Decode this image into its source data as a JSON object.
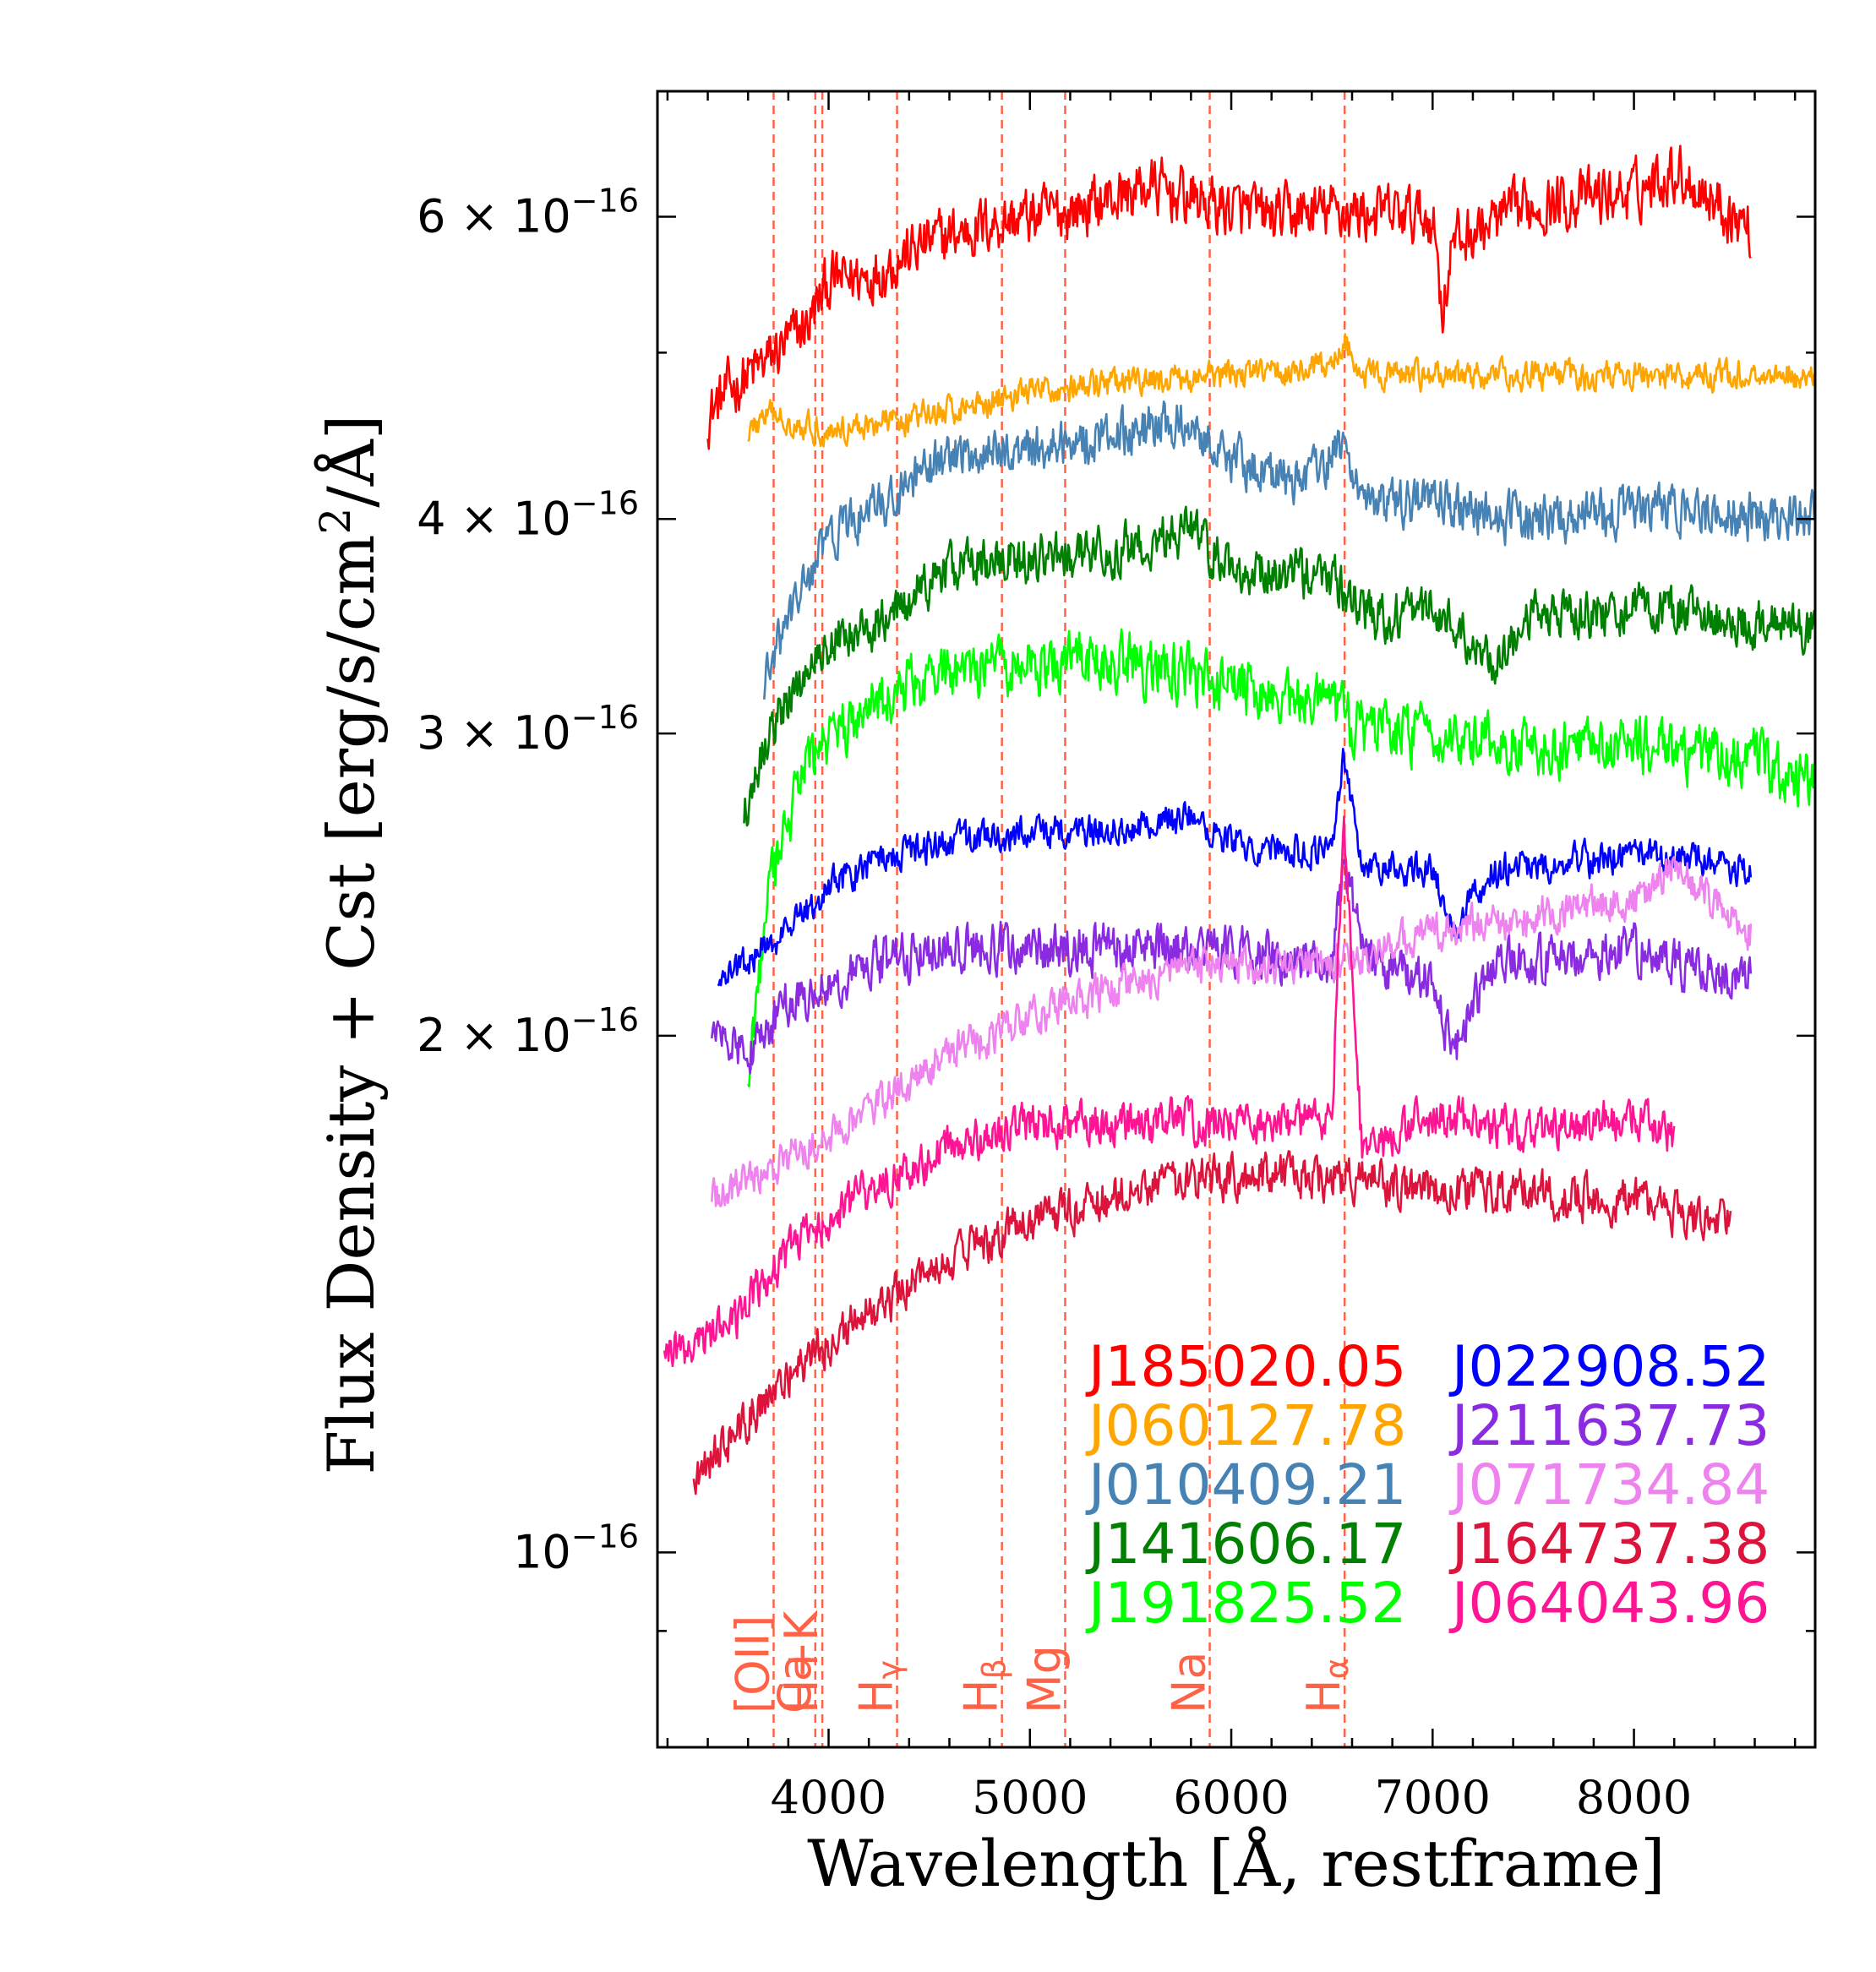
{
  "chart_data": {
    "type": "line",
    "title": "",
    "xlabel": "Wavelength [Å, restframe]",
    "ylabel_prefix": "Flux Density + Cst [erg/s/cm",
    "ylabel_sup": "2",
    "ylabel_suffix": "/Å]",
    "xscale": "linear",
    "yscale": "log",
    "xlim": [
      3150,
      8900
    ],
    "ylim": [
      7.7e-17,
      7.1e-16
    ],
    "xticks": [
      {
        "value": 4000,
        "label": "4000"
      },
      {
        "value": 5000,
        "label": "5000"
      },
      {
        "value": 6000,
        "label": "6000"
      },
      {
        "value": 7000,
        "label": "7000"
      },
      {
        "value": 8000,
        "label": "8000"
      }
    ],
    "yticks": [
      {
        "value": 1e-16,
        "base": "10",
        "exp": "−16"
      },
      {
        "value": 2e-16,
        "base": "2 × 10",
        "exp": "−16"
      },
      {
        "value": 3e-16,
        "base": "3 × 10",
        "exp": "−16"
      },
      {
        "value": 4e-16,
        "base": "4 × 10",
        "exp": "−16"
      },
      {
        "value": 6e-16,
        "base": "6 × 10",
        "exp": "−16"
      }
    ],
    "yminor_ticks": [
      9e-17,
      5e-16
    ],
    "reference_lines": [
      {
        "x": 3727,
        "label": "[OII]",
        "sub": ""
      },
      {
        "x": 3934,
        "label": "Ca",
        "sub": ""
      },
      {
        "x": 3969,
        "label": "H+K",
        "sub": ""
      },
      {
        "x": 4340,
        "label": "H",
        "sub": "γ"
      },
      {
        "x": 4861,
        "label": "H",
        "sub": "β"
      },
      {
        "x": 5175,
        "label": "Mg",
        "sub": ""
      },
      {
        "x": 5893,
        "label": "Na",
        "sub": ""
      },
      {
        "x": 6563,
        "label": "H",
        "sub": "α"
      }
    ],
    "reference_color": "#ff6347",
    "series": [
      {
        "name": "J185020.05",
        "color": "#ff0000",
        "x_start": 3400,
        "x_end": 8580,
        "anchors": [
          [
            3400,
            4.6
          ],
          [
            3500,
            4.75
          ],
          [
            3700,
            4.95
          ],
          [
            3900,
            5.2
          ],
          [
            4000,
            5.5
          ],
          [
            4200,
            5.55
          ],
          [
            4500,
            5.8
          ],
          [
            4800,
            5.95
          ],
          [
            5200,
            6.05
          ],
          [
            5600,
            6.25
          ],
          [
            5900,
            6.1
          ],
          [
            6200,
            6.0
          ],
          [
            6500,
            6.05
          ],
          [
            7000,
            6.0
          ],
          [
            7050,
            5.3
          ],
          [
            7100,
            5.8
          ],
          [
            7500,
            6.1
          ],
          [
            8000,
            6.2
          ],
          [
            8200,
            6.4
          ],
          [
            8580,
            5.9
          ]
        ],
        "noise": 0.06,
        "legend_col": 0,
        "legend_row": 0
      },
      {
        "name": "J060127.78",
        "color": "#ffa500",
        "x_start": 3600,
        "x_end": 8900,
        "anchors": [
          [
            3600,
            4.5
          ],
          [
            3700,
            4.6
          ],
          [
            4000,
            4.5
          ],
          [
            4500,
            4.6
          ],
          [
            5000,
            4.75
          ],
          [
            5500,
            4.8
          ],
          [
            6000,
            4.85
          ],
          [
            6500,
            4.9
          ],
          [
            6560,
            5.1
          ],
          [
            6650,
            4.85
          ],
          [
            7000,
            4.85
          ],
          [
            7400,
            4.85
          ],
          [
            8000,
            4.85
          ],
          [
            8900,
            4.85
          ]
        ],
        "noise": 0.03,
        "legend_col": 0,
        "legend_row": 1
      },
      {
        "name": "J010409.21",
        "color": "#4682b4",
        "x_start": 3680,
        "x_end": 8900,
        "anchors": [
          [
            3680,
            3.2
          ],
          [
            3800,
            3.5
          ],
          [
            4000,
            3.9
          ],
          [
            4300,
            4.1
          ],
          [
            4600,
            4.35
          ],
          [
            5000,
            4.4
          ],
          [
            5500,
            4.5
          ],
          [
            5800,
            4.55
          ],
          [
            6000,
            4.35
          ],
          [
            6300,
            4.2
          ],
          [
            6560,
            4.4
          ],
          [
            6700,
            4.05
          ],
          [
            7000,
            4.1
          ],
          [
            7400,
            4.0
          ],
          [
            8000,
            4.05
          ],
          [
            8900,
            4.0
          ]
        ],
        "noise": 0.05,
        "legend_col": 0,
        "legend_row": 2
      },
      {
        "name": "J141606.17",
        "color": "#008000",
        "x_start": 3580,
        "x_end": 8900,
        "anchors": [
          [
            3580,
            2.7
          ],
          [
            3700,
            3.0
          ],
          [
            4000,
            3.4
          ],
          [
            4300,
            3.5
          ],
          [
            4600,
            3.75
          ],
          [
            5000,
            3.8
          ],
          [
            5500,
            3.85
          ],
          [
            5800,
            3.95
          ],
          [
            6000,
            3.75
          ],
          [
            6500,
            3.7
          ],
          [
            6700,
            3.5
          ],
          [
            7000,
            3.55
          ],
          [
            7300,
            3.3
          ],
          [
            7500,
            3.5
          ],
          [
            8000,
            3.55
          ],
          [
            8900,
            3.45
          ]
        ],
        "noise": 0.05,
        "legend_col": 0,
        "legend_row": 3
      },
      {
        "name": "J191825.52",
        "color": "#00ff00",
        "x_start": 3600,
        "x_end": 8900,
        "anchors": [
          [
            3600,
            1.9
          ],
          [
            3700,
            2.4
          ],
          [
            3900,
            2.9
          ],
          [
            4200,
            3.1
          ],
          [
            4500,
            3.25
          ],
          [
            5000,
            3.3
          ],
          [
            5500,
            3.3
          ],
          [
            6000,
            3.2
          ],
          [
            6500,
            3.1
          ],
          [
            6700,
            3.0
          ],
          [
            7000,
            3.0
          ],
          [
            7500,
            2.95
          ],
          [
            8000,
            2.95
          ],
          [
            8600,
            2.9
          ],
          [
            8900,
            2.8
          ]
        ],
        "noise": 0.06,
        "legend_col": 0,
        "legend_row": 4
      },
      {
        "name": "J022908.52",
        "color": "#0000ff",
        "x_start": 3450,
        "x_end": 8580,
        "anchors": [
          [
            3450,
            2.15
          ],
          [
            3800,
            2.3
          ],
          [
            4000,
            2.45
          ],
          [
            4300,
            2.55
          ],
          [
            4600,
            2.6
          ],
          [
            5000,
            2.62
          ],
          [
            5500,
            2.65
          ],
          [
            5800,
            2.68
          ],
          [
            6000,
            2.6
          ],
          [
            6500,
            2.55
          ],
          [
            6560,
            2.9
          ],
          [
            6650,
            2.5
          ],
          [
            7000,
            2.5
          ],
          [
            7100,
            2.3
          ],
          [
            7300,
            2.5
          ],
          [
            8000,
            2.55
          ],
          [
            8580,
            2.5
          ]
        ],
        "noise": 0.035,
        "legend_col": 1,
        "legend_row": 0
      },
      {
        "name": "J211637.73",
        "color": "#8a2be2",
        "x_start": 3420,
        "x_end": 8580,
        "anchors": [
          [
            3420,
            2.0
          ],
          [
            3600,
            1.95
          ],
          [
            3800,
            2.1
          ],
          [
            4200,
            2.2
          ],
          [
            4600,
            2.25
          ],
          [
            5000,
            2.25
          ],
          [
            5500,
            2.25
          ],
          [
            6000,
            2.25
          ],
          [
            6500,
            2.2
          ],
          [
            6560,
            2.5
          ],
          [
            6700,
            2.2
          ],
          [
            7000,
            2.15
          ],
          [
            7100,
            1.95
          ],
          [
            7300,
            2.2
          ],
          [
            8000,
            2.25
          ],
          [
            8580,
            2.15
          ]
        ],
        "noise": 0.05,
        "legend_col": 1,
        "legend_row": 1
      },
      {
        "name": "J071734.84",
        "color": "#ee82ee",
        "x_start": 3420,
        "x_end": 8580,
        "anchors": [
          [
            3420,
            1.6
          ],
          [
            3800,
            1.7
          ],
          [
            4200,
            1.8
          ],
          [
            4600,
            1.95
          ],
          [
            5000,
            2.05
          ],
          [
            5500,
            2.15
          ],
          [
            6000,
            2.2
          ],
          [
            6500,
            2.2
          ],
          [
            7000,
            2.3
          ],
          [
            7500,
            2.35
          ],
          [
            8000,
            2.4
          ],
          [
            8200,
            2.5
          ],
          [
            8580,
            2.3
          ]
        ],
        "noise": 0.04,
        "legend_col": 1,
        "legend_row": 2
      },
      {
        "name": "J164737.38",
        "color": "#dc143c",
        "x_start": 3330,
        "x_end": 8480,
        "anchors": [
          [
            3330,
            1.1
          ],
          [
            3600,
            1.2
          ],
          [
            3900,
            1.3
          ],
          [
            4200,
            1.38
          ],
          [
            4600,
            1.48
          ],
          [
            5000,
            1.56
          ],
          [
            5500,
            1.62
          ],
          [
            6000,
            1.66
          ],
          [
            6500,
            1.66
          ],
          [
            7000,
            1.62
          ],
          [
            7500,
            1.62
          ],
          [
            8000,
            1.6
          ],
          [
            8480,
            1.55
          ]
        ],
        "noise": 0.045,
        "legend_col": 1,
        "legend_row": 3
      },
      {
        "name": "J064043.96",
        "color": "#ff1493",
        "x_start": 3180,
        "x_end": 8200,
        "anchors": [
          [
            3180,
            1.3
          ],
          [
            3500,
            1.35
          ],
          [
            3800,
            1.5
          ],
          [
            4200,
            1.62
          ],
          [
            4600,
            1.72
          ],
          [
            5000,
            1.78
          ],
          [
            5500,
            1.78
          ],
          [
            6000,
            1.78
          ],
          [
            6500,
            1.78
          ],
          [
            6560,
            2.6
          ],
          [
            6650,
            1.7
          ],
          [
            7000,
            1.8
          ],
          [
            7500,
            1.75
          ],
          [
            8000,
            1.8
          ],
          [
            8200,
            1.75
          ]
        ],
        "noise": 0.045,
        "legend_col": 1,
        "legend_row": 4
      }
    ]
  }
}
